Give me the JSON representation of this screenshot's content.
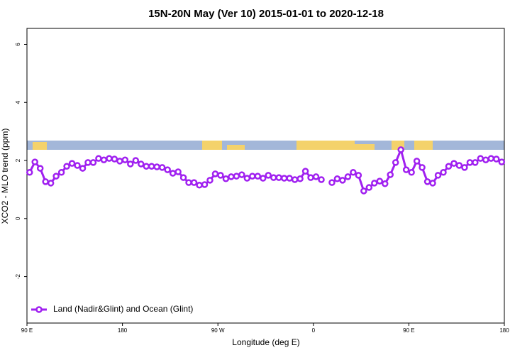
{
  "chart_data": {
    "type": "line",
    "title": "15N-20N May (Ver 10)   2015-01-01 to 2020-12-18",
    "x_label": "Longitude (deg E)",
    "y_label": "XCO2 - MLO trend (ppm)",
    "xlim": [
      90,
      540
    ],
    "ylim": [
      -3.6,
      6.55
    ],
    "xticks": [
      {
        "value": 90,
        "label": "90 E"
      },
      180,
      {
        "value": 270,
        "label": "90 W"
      },
      {
        "value": 360,
        "label": "0"
      },
      {
        "value": 450,
        "label": "90 E"
      },
      {
        "value": 540,
        "label": "180"
      }
    ],
    "yticks": [
      -2,
      0,
      2,
      4,
      6
    ],
    "legend": "bottomleft",
    "x": [
      92.5,
      97.5,
      102.5,
      107.5,
      112.5,
      117.5,
      122.5,
      127.5,
      132.5,
      137.5,
      142.5,
      147.5,
      152.5,
      157.5,
      162.5,
      167.5,
      172.5,
      177.5,
      182.5,
      187.5,
      192.5,
      197.5,
      202.5,
      207.5,
      212.5,
      217.5,
      222.5,
      227.5,
      232.5,
      237.5,
      242.5,
      247.5,
      252.5,
      257.5,
      262.5,
      267.5,
      272.5,
      277.5,
      282.5,
      287.5,
      292.5,
      297.5,
      302.5,
      307.5,
      312.5,
      317.5,
      322.5,
      327.5,
      332.5,
      337.5,
      342.5,
      347.5,
      352.5,
      357.5,
      362.5,
      367.5,
      372.5,
      377.5,
      382.5,
      387.5,
      392.5,
      397.5,
      402.5,
      407.5,
      412.5,
      417.5,
      422.5,
      427.5,
      432.5,
      437.5,
      442.5,
      447.5,
      452.5,
      457.5,
      462.5,
      467.5,
      472.5,
      477.5,
      482.5,
      487.5,
      492.5,
      497.5,
      502.5,
      507.5,
      512.5,
      517.5,
      522.5,
      527.5,
      532.5,
      537.5
    ],
    "series": [
      {
        "name": "Land (Nadir&Glint) and Ocean (Glint)",
        "color": "#a020f0",
        "values": [
          1.59,
          1.95,
          1.73,
          1.27,
          1.22,
          1.46,
          1.59,
          1.8,
          1.9,
          1.83,
          1.73,
          1.93,
          1.93,
          2.07,
          2.02,
          2.07,
          2.05,
          1.98,
          2.02,
          1.88,
          2.0,
          1.88,
          1.8,
          1.8,
          1.78,
          1.76,
          1.68,
          1.56,
          1.61,
          1.41,
          1.24,
          1.24,
          1.15,
          1.17,
          1.32,
          1.54,
          1.49,
          1.37,
          1.44,
          1.46,
          1.51,
          1.39,
          1.46,
          1.46,
          1.39,
          1.49,
          1.41,
          1.41,
          1.39,
          1.39,
          1.34,
          1.37,
          1.63,
          1.41,
          1.44,
          1.34,
          null,
          1.24,
          1.37,
          1.32,
          1.44,
          1.59,
          1.49,
          0.95,
          1.07,
          1.22,
          1.29,
          1.2,
          1.51,
          1.93,
          2.37,
          1.68,
          1.59,
          1.98,
          1.76,
          1.27,
          1.22,
          1.49,
          1.59,
          1.8,
          1.9,
          1.83,
          1.76,
          1.93,
          1.93,
          2.07,
          2.02,
          2.07,
          2.05,
          1.95
        ]
      }
    ]
  }
}
